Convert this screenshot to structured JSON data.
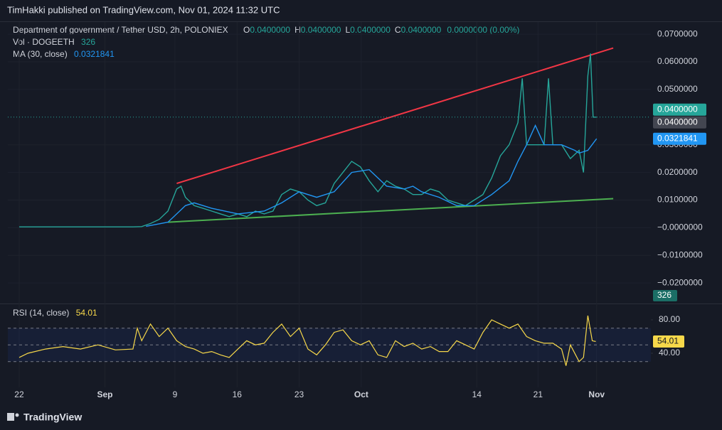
{
  "header": {
    "text": "TimHakki published on TradingView.com, Nov 01, 2024 11:32 UTC"
  },
  "chart_data": {
    "type": "line",
    "title": "Department of government / Tether USD, 2h, POLONIEX",
    "ohlc_legend": [
      {
        "key": "O",
        "value": 0.04,
        "label": "0.0400000"
      },
      {
        "key": "H",
        "value": 0.04,
        "label": "0.0400000"
      },
      {
        "key": "L",
        "value": 0.04,
        "label": "0.0400000"
      },
      {
        "key": "C",
        "value": 0.04,
        "label": "0.0400000"
      }
    ],
    "change": "0.0000000 (0.00%)",
    "volume_legend": {
      "name": "Vol · DOGEETH",
      "value": 326
    },
    "color": "#26a69a",
    "x": [
      0,
      1,
      2,
      3,
      4,
      5,
      6,
      7,
      8,
      9,
      10,
      11,
      12,
      13,
      14,
      15,
      16,
      17,
      18,
      18.5,
      19,
      20,
      21,
      22,
      23,
      24,
      25,
      26,
      27,
      28,
      29,
      30,
      31,
      32,
      33,
      34,
      35,
      36,
      37,
      38,
      39,
      40,
      41,
      42,
      43,
      44,
      45,
      46,
      47,
      48,
      49,
      50,
      51,
      52,
      53,
      54,
      55,
      56,
      57,
      57.5,
      58,
      59,
      60,
      60.5,
      61,
      62,
      63,
      64,
      64.5,
      65,
      65.3,
      65.6,
      66
    ],
    "values": [
      0.0003,
      0.0003,
      0.0003,
      0.0003,
      0.0003,
      0.0003,
      0.0003,
      0.0003,
      0.0003,
      0.0003,
      0.0003,
      0.0003,
      0.0003,
      0.0003,
      0.0004,
      0.0015,
      0.003,
      0.006,
      0.014,
      0.015,
      0.011,
      0.008,
      0.007,
      0.006,
      0.005,
      0.004,
      0.005,
      0.004,
      0.006,
      0.005,
      0.006,
      0.012,
      0.014,
      0.013,
      0.01,
      0.008,
      0.009,
      0.016,
      0.02,
      0.024,
      0.022,
      0.017,
      0.013,
      0.017,
      0.015,
      0.014,
      0.012,
      0.012,
      0.014,
      0.013,
      0.01,
      0.009,
      0.008,
      0.01,
      0.012,
      0.018,
      0.026,
      0.03,
      0.038,
      0.054,
      0.03,
      0.03,
      0.03,
      0.054,
      0.03,
      0.03,
      0.025,
      0.028,
      0.02,
      0.055,
      0.063,
      0.04,
      0.04
    ],
    "ma": {
      "name": "MA (30, close)",
      "color": "#2196f3",
      "x": [
        14.5,
        17,
        19,
        20,
        22,
        25,
        28,
        30,
        32,
        34,
        36,
        38,
        40,
        42,
        44,
        45,
        46,
        48,
        50,
        52,
        54,
        56,
        57,
        58,
        59,
        60,
        62,
        63.5,
        64,
        65,
        66
      ],
      "values": [
        0.0005,
        0.002,
        0.008,
        0.009,
        0.007,
        0.005,
        0.006,
        0.009,
        0.013,
        0.011,
        0.013,
        0.02,
        0.021,
        0.015,
        0.014,
        0.015,
        0.013,
        0.011,
        0.008,
        0.008,
        0.012,
        0.017,
        0.024,
        0.03,
        0.037,
        0.03,
        0.03,
        0.028,
        0.027,
        0.028,
        0.0321841
      ],
      "last": {
        "value": 0.0321841,
        "label": "0.0321841"
      }
    },
    "last_price": {
      "value": 0.04,
      "label": "0.0400000"
    },
    "trendlines": [
      {
        "color": "#f23645",
        "x": [
          18,
          67.9
        ],
        "values": [
          0.016,
          0.065
        ]
      },
      {
        "color": "#4caf50",
        "x": [
          17,
          67.9
        ],
        "values": [
          0.002,
          0.0105
        ]
      }
    ],
    "xlim": [
      -1.3,
      72.2
    ],
    "xticks": [
      {
        "value": 0,
        "label": "22"
      },
      {
        "value": 9.8,
        "label": "Sep"
      },
      {
        "value": 17.8,
        "label": "9"
      },
      {
        "value": 24.9,
        "label": "16"
      },
      {
        "value": 32,
        "label": "23"
      },
      {
        "value": 39.1,
        "label": "Oct"
      },
      {
        "value": 52.3,
        "label": "14"
      },
      {
        "value": 59.3,
        "label": "21"
      },
      {
        "value": 66,
        "label": "Nov"
      }
    ],
    "ylim": [
      -0.0269,
      0.0744
    ],
    "yticks": [
      {
        "value": 0.07,
        "label": "0.0700000"
      },
      {
        "value": 0.06,
        "label": "0.0600000"
      },
      {
        "value": 0.05,
        "label": "0.0500000"
      },
      {
        "value": 0.03,
        "label": "0.0300000"
      },
      {
        "value": 0.02,
        "label": "0.0200000"
      },
      {
        "value": 0.01,
        "label": "0.0100000"
      },
      {
        "value": 0,
        "label": "−0.0000000"
      },
      {
        "value": -0.01,
        "label": "−0.0100000"
      },
      {
        "value": -0.02,
        "label": "−0.0200000"
      }
    ],
    "rsi": {
      "name": "RSI (14, close)",
      "color": "#f7d84a",
      "x": [
        0,
        1,
        3,
        5,
        7,
        9,
        11,
        13,
        13.5,
        14,
        15,
        16,
        17,
        18,
        19,
        20,
        21,
        22,
        23,
        24,
        25,
        26,
        27,
        28,
        29,
        30,
        31,
        32,
        33,
        34,
        35,
        36,
        37,
        38,
        39,
        40,
        41,
        42,
        43,
        44,
        45,
        46,
        47,
        48,
        49,
        50,
        51,
        52,
        53,
        54,
        55,
        56,
        57,
        58,
        59,
        60,
        61,
        62,
        62.5,
        63,
        64,
        64.5,
        65,
        65.5,
        65.9
      ],
      "values": [
        35,
        40,
        45,
        48,
        45,
        50,
        44,
        45,
        70,
        55,
        75,
        60,
        70,
        55,
        48,
        45,
        40,
        42,
        38,
        35,
        45,
        55,
        50,
        52,
        65,
        75,
        60,
        70,
        45,
        38,
        50,
        65,
        68,
        55,
        50,
        55,
        38,
        35,
        55,
        48,
        52,
        45,
        48,
        42,
        42,
        55,
        50,
        45,
        65,
        80,
        75,
        70,
        75,
        60,
        55,
        52,
        52,
        45,
        25,
        50,
        30,
        35,
        85,
        55,
        54.01
      ],
      "ylim": [
        -0.85,
        97
      ],
      "yticks": [
        {
          "value": 80,
          "label": "80.00"
        },
        {
          "value": 40,
          "label": "40.00"
        }
      ],
      "levels": [
        70,
        50,
        30
      ],
      "last": {
        "value": 54.01,
        "label": "54.01"
      }
    }
  },
  "footer": {
    "brand": "TradingView"
  }
}
